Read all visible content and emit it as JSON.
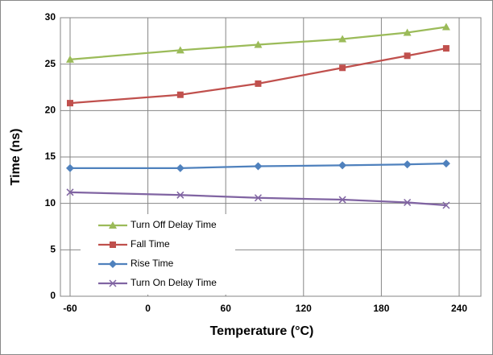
{
  "chart_data": {
    "type": "line",
    "x_label": "Temperature (°C)",
    "y_label": "Time (ns)",
    "x": [
      -60,
      25,
      85,
      150,
      200,
      230
    ],
    "series": [
      {
        "name": "Turn Off Delay Time",
        "color": "#9bbb59",
        "marker": "triangle",
        "values": [
          25.5,
          26.5,
          27.1,
          27.7,
          28.4,
          29.0
        ]
      },
      {
        "name": "Fall Time",
        "color": "#c0504d",
        "marker": "square",
        "values": [
          20.8,
          21.7,
          22.9,
          24.6,
          25.9,
          26.7
        ]
      },
      {
        "name": "Rise Time",
        "color": "#4f81bd",
        "marker": "diamond",
        "values": [
          13.8,
          13.8,
          14.0,
          14.1,
          14.2,
          14.3
        ]
      },
      {
        "name": "Turn On Delay Time",
        "color": "#8064a2",
        "marker": "x",
        "values": [
          11.2,
          10.9,
          10.6,
          10.4,
          10.1,
          9.8
        ]
      }
    ],
    "xlim": [
      -60,
      240
    ],
    "xticks": [
      -60,
      0,
      60,
      120,
      180,
      240
    ],
    "ylim": [
      0,
      30
    ],
    "yticks": [
      0,
      5,
      10,
      15,
      20,
      25,
      30
    ],
    "grid": true,
    "legend": "lower left"
  }
}
